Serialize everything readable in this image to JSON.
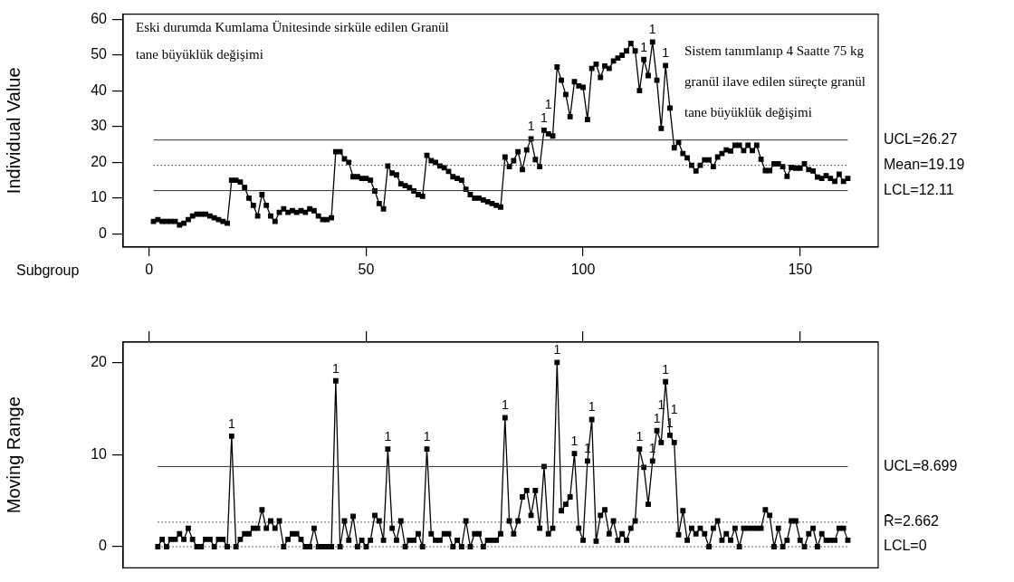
{
  "chart_data": [
    {
      "type": "line",
      "ylabel": "Individual Value",
      "xlabel": "Subgroup",
      "xlim": [
        -6,
        168
      ],
      "xticks": [
        0,
        50,
        100,
        150
      ],
      "ylim": [
        -3.7,
        61.5
      ],
      "yticks": [
        0,
        10,
        20,
        30,
        40,
        50,
        60
      ],
      "grid": false,
      "legend": false,
      "marker": "square",
      "line_style": "solid",
      "x": [
        1,
        2,
        3,
        4,
        5,
        6,
        7,
        8,
        9,
        10,
        11,
        12,
        13,
        14,
        15,
        16,
        17,
        18,
        19,
        20,
        21,
        22,
        23,
        24,
        25,
        26,
        27,
        28,
        29,
        30,
        31,
        32,
        33,
        34,
        35,
        36,
        37,
        38,
        39,
        40,
        41,
        42,
        43,
        44,
        45,
        46,
        47,
        48,
        49,
        50,
        51,
        52,
        53,
        54,
        55,
        56,
        57,
        58,
        59,
        60,
        61,
        62,
        63,
        64,
        65,
        66,
        67,
        68,
        69,
        70,
        71,
        72,
        73,
        74,
        75,
        76,
        77,
        78,
        79,
        80,
        81,
        82,
        83,
        84,
        85,
        86,
        87,
        88,
        89,
        90,
        91,
        92,
        93,
        94,
        95,
        96,
        97,
        98,
        99,
        100,
        101,
        102,
        103,
        104,
        105,
        106,
        107,
        108,
        109,
        110,
        111,
        112,
        113,
        114,
        115,
        116,
        117,
        118,
        119,
        120,
        121,
        122,
        123,
        124,
        125,
        126,
        127,
        128,
        129,
        130,
        131,
        132,
        133,
        134,
        135,
        136,
        137,
        138,
        139,
        140,
        141,
        142,
        143,
        144,
        145,
        146,
        147,
        148,
        149,
        150,
        151,
        152,
        153,
        154,
        155,
        156,
        157,
        158,
        159,
        160,
        161
      ],
      "series": [
        {
          "color": "#000000",
          "values": [
            3.5,
            4,
            3.5,
            3.5,
            3.5,
            3.5,
            2.5,
            3,
            4,
            5,
            5.5,
            5.5,
            5.5,
            5,
            4.5,
            4,
            3.5,
            3,
            15,
            15,
            14.5,
            13,
            10,
            8,
            5,
            11,
            8,
            5,
            3.5,
            6,
            7,
            6,
            6.5,
            6,
            6.5,
            6,
            7,
            6.5,
            5,
            4,
            4,
            4.5,
            23,
            23,
            21,
            20,
            16,
            16,
            15.5,
            15.5,
            15,
            12,
            8.5,
            7,
            19,
            17,
            16.5,
            14,
            13.5,
            13,
            12,
            11,
            10.5,
            22,
            20.5,
            20,
            19,
            18.5,
            17.5,
            16,
            15.5,
            15,
            12.5,
            11,
            10,
            10,
            9.5,
            9,
            8.5,
            8,
            7.5,
            21.5,
            18.8,
            20.5,
            23,
            18,
            23.5,
            26.6,
            20.8,
            18.8,
            29,
            28,
            27.4,
            46.7,
            43,
            39,
            32.8,
            42.6,
            41.4,
            41,
            32,
            46.3,
            47.5,
            43.8,
            47,
            46.3,
            48.4,
            49.2,
            50,
            51.2,
            53.3,
            51.2,
            40.1,
            48.8,
            44.3,
            53.7,
            43,
            29.5,
            47.1,
            35.2,
            24.1,
            25.6,
            22.5,
            21.3,
            19.2,
            17.6,
            19.2,
            20.7,
            20.7,
            18.8,
            21.5,
            22.5,
            23.5,
            23.2,
            24.8,
            24.8,
            23.3,
            24.8,
            23.3,
            24.8,
            20.9,
            17.7,
            17.7,
            19.6,
            19.6,
            18.8,
            16.1,
            18.6,
            18.4,
            18.4,
            19.6,
            18,
            17.6,
            15.9,
            15.5,
            16.3,
            15.5,
            14.7,
            16.7,
            14.7,
            15.5
          ]
        }
      ],
      "ref_lines": [
        {
          "axis": "y",
          "value": 26.27,
          "label": "UCL=26.27",
          "color": "#333333",
          "line_style": "solid"
        },
        {
          "axis": "y",
          "value": 19.19,
          "label": "Mean=19.19",
          "color": "#333333",
          "line_style": "dotted"
        },
        {
          "axis": "y",
          "value": 12.11,
          "label": "LCL=12.11",
          "color": "#333333",
          "line_style": "solid"
        }
      ],
      "annotations": [
        "Eski durumda Kumlama Ünitesinde sirküle edilen Granül tane büyüklük değişimi",
        "Sistem tanımlanıp 4 Saatte 75 kg granül ilave edilen süreçte granül tane büyüklük değişimi",
        {
          "text": "1",
          "x": 88,
          "y": 26.6
        },
        {
          "text": "1",
          "x": 91,
          "y": 29
        },
        {
          "text": "1",
          "x": 92,
          "y": 28
        },
        {
          "text": "1",
          "x": 114,
          "y": 48.8
        },
        {
          "text": "1",
          "x": 116,
          "y": 53.7
        },
        {
          "text": "1",
          "x": 119,
          "y": 47.1
        }
      ]
    },
    {
      "type": "line",
      "ylabel": "Moving Range",
      "xlim": [
        -6,
        168
      ],
      "xticks": [
        0,
        50,
        100,
        150
      ],
      "ylim": [
        -2.3,
        22.2
      ],
      "yticks": [
        0,
        10,
        20
      ],
      "tick_labels": "y",
      "grid": false,
      "legend": false,
      "marker": "square",
      "line_style": "solid",
      "series": [
        {
          "color": "#000000",
          "x": [
            2,
            3,
            4,
            5,
            6,
            7,
            8,
            9,
            10,
            11,
            12,
            13,
            14,
            15,
            16,
            17,
            18,
            19,
            20,
            21,
            22,
            23,
            24,
            25,
            26,
            27,
            28,
            29,
            30,
            31,
            32,
            33,
            34,
            35,
            36,
            37,
            38,
            39,
            40,
            41,
            42,
            43,
            44,
            45,
            46,
            47,
            48,
            49,
            50,
            51,
            52,
            53,
            54,
            55,
            56,
            57,
            58,
            59,
            60,
            61,
            62,
            63,
            64,
            65,
            66,
            67,
            68,
            69,
            70,
            71,
            72,
            73,
            74,
            75,
            76,
            77,
            78,
            79,
            80,
            81,
            82,
            83,
            84,
            85,
            86,
            87,
            88,
            89,
            90,
            91,
            92,
            93,
            94,
            95,
            96,
            97,
            98,
            99,
            100,
            101,
            102,
            103,
            104,
            105,
            106,
            107,
            108,
            109,
            110,
            111,
            112,
            113,
            114,
            115,
            116,
            117,
            118,
            119,
            120,
            121,
            122,
            123,
            124,
            125,
            126,
            127,
            128,
            129,
            130,
            131,
            132,
            133,
            134,
            135,
            136,
            137,
            138,
            139,
            140,
            141,
            142,
            143,
            144,
            145,
            146,
            147,
            148,
            149,
            150,
            151,
            152,
            153,
            154,
            155,
            156,
            157,
            158,
            159,
            160,
            161
          ],
          "values": [
            0,
            0.8,
            0,
            0.8,
            0.8,
            1.4,
            0.8,
            2,
            0.8,
            0,
            0,
            0.8,
            0.8,
            0,
            0.8,
            0.8,
            0,
            12,
            0,
            0.8,
            1.4,
            1.4,
            2,
            2,
            4,
            2,
            2.8,
            2,
            2.8,
            0,
            0.8,
            1.4,
            1.4,
            0.8,
            0,
            0,
            2,
            0,
            0,
            0,
            0,
            18,
            0,
            2.8,
            0.7,
            3.3,
            0,
            0.7,
            0,
            0.7,
            3.4,
            2.8,
            0.7,
            10.6,
            2,
            0.7,
            2.8,
            0,
            0.7,
            0.7,
            1.4,
            0,
            10.6,
            1.4,
            0.7,
            0.7,
            1.4,
            1.4,
            0,
            0.7,
            0,
            2.8,
            0,
            1.4,
            1.4,
            0,
            0.7,
            0.7,
            0.7,
            1.4,
            14,
            2.8,
            1.4,
            2.8,
            5.4,
            6.1,
            3.4,
            6.1,
            2,
            8.7,
            1.4,
            2,
            20,
            3.9,
            4.6,
            5.4,
            10.1,
            2,
            0.7,
            9.3,
            13.8,
            0.6,
            3.4,
            4,
            1.4,
            2.8,
            0.7,
            1.4,
            0.7,
            2,
            2.8,
            10.6,
            8.6,
            4.6,
            9.3,
            12.6,
            11.3,
            17.9,
            12.1,
            11.3,
            1.3,
            3.9,
            0.7,
            2,
            1.4,
            2,
            1.4,
            0,
            2,
            2.8,
            0.7,
            1.4,
            0.7,
            2,
            0,
            2,
            2,
            2,
            2,
            2,
            4,
            3.4,
            0,
            2,
            0,
            0.7,
            2.8,
            2.8,
            0.7,
            0,
            1.4,
            2,
            0,
            1.4,
            0.7,
            0.7,
            0.7,
            2,
            2,
            0.7
          ]
        }
      ],
      "ref_lines": [
        {
          "axis": "y",
          "value": 8.699,
          "label": "UCL=8.699",
          "color": "#333333",
          "line_style": "solid"
        },
        {
          "axis": "y",
          "value": 2.662,
          "label": "R̄=2.662",
          "color": "#333333",
          "line_style": "dotted"
        },
        {
          "axis": "y",
          "value": 0,
          "label": "LCL=0",
          "color": "#333333",
          "line_style": "dotted"
        }
      ],
      "annotations": [
        {
          "text": "1",
          "x": 19,
          "y": 12
        },
        {
          "text": "1",
          "x": 43,
          "y": 18
        },
        {
          "text": "1",
          "x": 55,
          "y": 10.6
        },
        {
          "text": "1",
          "x": 64,
          "y": 10.6
        },
        {
          "text": "1",
          "x": 82,
          "y": 14
        },
        {
          "text": "1",
          "x": 94,
          "y": 20
        },
        {
          "text": "1",
          "x": 98,
          "y": 10.1
        },
        {
          "text": "1",
          "x": 101,
          "y": 9.3
        },
        {
          "text": "1",
          "x": 102,
          "y": 13.8
        },
        {
          "text": "1",
          "x": 113,
          "y": 10.6
        },
        {
          "text": "1",
          "x": 116,
          "y": 9.3
        },
        {
          "text": "1",
          "x": 117,
          "y": 12.6
        },
        {
          "text": "1",
          "x": 118,
          "y": 11.3
        },
        {
          "text": "1",
          "x": 119,
          "y": 17.9
        },
        {
          "text": "1",
          "x": 120,
          "y": 12.1
        },
        {
          "text": "1",
          "x": 121,
          "y": 11.3
        }
      ]
    }
  ]
}
